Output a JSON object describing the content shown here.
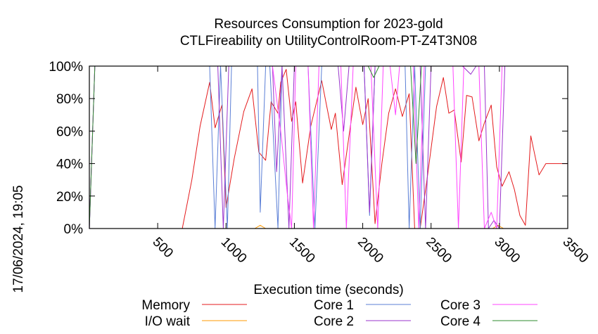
{
  "chart_data": {
    "type": "line",
    "title": "Resources Consumption for 2023-gold",
    "subtitle": "CTLFireability on UtilityControlRoom-PT-Z4T3N08",
    "xlabel": "Execution time (seconds)",
    "ylabel": "",
    "side_label": "17/06/2024, 19:05",
    "xlim": [
      0,
      3500
    ],
    "ylim": [
      0,
      100
    ],
    "x_ticks": [
      "500",
      "1000",
      "1500",
      "2000",
      "2500",
      "3000",
      "3500"
    ],
    "x_tick_values": [
      500,
      1000,
      1500,
      2000,
      2500,
      3000,
      3500
    ],
    "y_ticks": [
      "0%",
      "20%",
      "40%",
      "60%",
      "80%",
      "100%"
    ],
    "y_tick_values": [
      0,
      20,
      40,
      60,
      80,
      100
    ],
    "grid": false,
    "legend_position": "bottom",
    "series": [
      {
        "name": "Memory",
        "color": "#e41a1c",
        "points": [
          [
            0,
            0
          ],
          [
            680,
            0
          ],
          [
            750,
            30
          ],
          [
            810,
            63
          ],
          [
            880,
            90
          ],
          [
            920,
            62
          ],
          [
            970,
            76
          ],
          [
            1000,
            13
          ],
          [
            1060,
            43
          ],
          [
            1130,
            72
          ],
          [
            1190,
            86
          ],
          [
            1240,
            47
          ],
          [
            1290,
            42
          ],
          [
            1330,
            78
          ],
          [
            1380,
            71
          ],
          [
            1400,
            90
          ],
          [
            1440,
            98
          ],
          [
            1480,
            66
          ],
          [
            1510,
            78
          ],
          [
            1560,
            28
          ],
          [
            1620,
            63
          ],
          [
            1700,
            91
          ],
          [
            1770,
            61
          ],
          [
            1800,
            71
          ],
          [
            1850,
            27
          ],
          [
            1900,
            57
          ],
          [
            1950,
            87
          ],
          [
            2000,
            64
          ],
          [
            2040,
            80
          ],
          [
            2090,
            3
          ],
          [
            2140,
            40
          ],
          [
            2190,
            71
          ],
          [
            2240,
            86
          ],
          [
            2290,
            69
          ],
          [
            2340,
            83
          ],
          [
            2380,
            0
          ],
          [
            2420,
            0
          ],
          [
            2470,
            30
          ],
          [
            2540,
            75
          ],
          [
            2590,
            93
          ],
          [
            2630,
            71
          ],
          [
            2670,
            73
          ],
          [
            2720,
            41
          ],
          [
            2760,
            82
          ],
          [
            2800,
            81
          ],
          [
            2850,
            54
          ],
          [
            2890,
            65
          ],
          [
            2940,
            76
          ],
          [
            2980,
            38
          ],
          [
            3020,
            26
          ],
          [
            3070,
            35
          ],
          [
            3110,
            24
          ],
          [
            3150,
            8
          ],
          [
            3190,
            2
          ],
          [
            3230,
            57
          ],
          [
            3290,
            33
          ],
          [
            3340,
            40
          ],
          [
            3500,
            40
          ]
        ]
      },
      {
        "name": "I/O wait",
        "color": "#ff9900",
        "points": [
          [
            0,
            0
          ],
          [
            1210,
            0
          ],
          [
            1250,
            2
          ],
          [
            1290,
            0
          ],
          [
            2950,
            0
          ],
          [
            2990,
            2
          ],
          [
            3030,
            0
          ],
          [
            3500,
            0
          ]
        ]
      },
      {
        "name": "Core 1",
        "color": "#5b7fd6",
        "points": [
          [
            0,
            0
          ],
          [
            40,
            100
          ],
          [
            880,
            100
          ],
          [
            920,
            0
          ],
          [
            960,
            100
          ],
          [
            1010,
            0
          ],
          [
            1040,
            100
          ],
          [
            1230,
            100
          ],
          [
            1250,
            10
          ],
          [
            1290,
            100
          ],
          [
            1320,
            100
          ],
          [
            1380,
            0
          ],
          [
            1410,
            100
          ],
          [
            1600,
            100
          ],
          [
            1650,
            0
          ],
          [
            1700,
            100
          ],
          [
            2010,
            100
          ],
          [
            2050,
            8
          ],
          [
            2090,
            100
          ],
          [
            2310,
            100
          ],
          [
            2340,
            0
          ],
          [
            2380,
            100
          ],
          [
            2420,
            0
          ],
          [
            2460,
            100
          ],
          [
            3500,
            100
          ]
        ]
      },
      {
        "name": "Core 2",
        "color": "#9933cc",
        "points": [
          [
            0,
            0
          ],
          [
            40,
            100
          ],
          [
            940,
            100
          ],
          [
            980,
            0
          ],
          [
            1020,
            100
          ],
          [
            1340,
            100
          ],
          [
            1370,
            35
          ],
          [
            1410,
            100
          ],
          [
            1460,
            0
          ],
          [
            1500,
            100
          ],
          [
            1820,
            100
          ],
          [
            1860,
            60
          ],
          [
            1900,
            100
          ],
          [
            2010,
            100
          ],
          [
            2050,
            10
          ],
          [
            2090,
            100
          ],
          [
            2420,
            100
          ],
          [
            2460,
            0
          ],
          [
            2500,
            100
          ],
          [
            2730,
            100
          ],
          [
            2790,
            95
          ],
          [
            2830,
            100
          ],
          [
            2890,
            100
          ],
          [
            2920,
            0
          ],
          [
            2960,
            5
          ],
          [
            3000,
            0
          ],
          [
            3040,
            100
          ],
          [
            3500,
            100
          ]
        ]
      },
      {
        "name": "Core 3",
        "color": "#ff44ff",
        "points": [
          [
            0,
            0
          ],
          [
            40,
            100
          ],
          [
            1340,
            100
          ],
          [
            1400,
            60
          ],
          [
            1450,
            20
          ],
          [
            1480,
            0
          ],
          [
            1510,
            100
          ],
          [
            1600,
            100
          ],
          [
            1640,
            0
          ],
          [
            1680,
            100
          ],
          [
            1840,
            100
          ],
          [
            1880,
            0
          ],
          [
            1930,
            100
          ],
          [
            2060,
            100
          ],
          [
            2110,
            0
          ],
          [
            2150,
            100
          ],
          [
            2200,
            100
          ],
          [
            2240,
            70
          ],
          [
            2270,
            100
          ],
          [
            2370,
            100
          ],
          [
            2410,
            0
          ],
          [
            2450,
            100
          ],
          [
            2660,
            100
          ],
          [
            2700,
            0
          ],
          [
            2740,
            100
          ],
          [
            2850,
            100
          ],
          [
            2890,
            0
          ],
          [
            2940,
            10
          ],
          [
            2980,
            0
          ],
          [
            3020,
            100
          ],
          [
            3500,
            100
          ]
        ]
      },
      {
        "name": "Core 4",
        "color": "#2e8b2e",
        "points": [
          [
            0,
            0
          ],
          [
            40,
            100
          ],
          [
            2040,
            100
          ],
          [
            2080,
            93
          ],
          [
            2120,
            100
          ],
          [
            2350,
            100
          ],
          [
            2390,
            40
          ],
          [
            2430,
            100
          ],
          [
            3500,
            100
          ]
        ]
      }
    ]
  }
}
